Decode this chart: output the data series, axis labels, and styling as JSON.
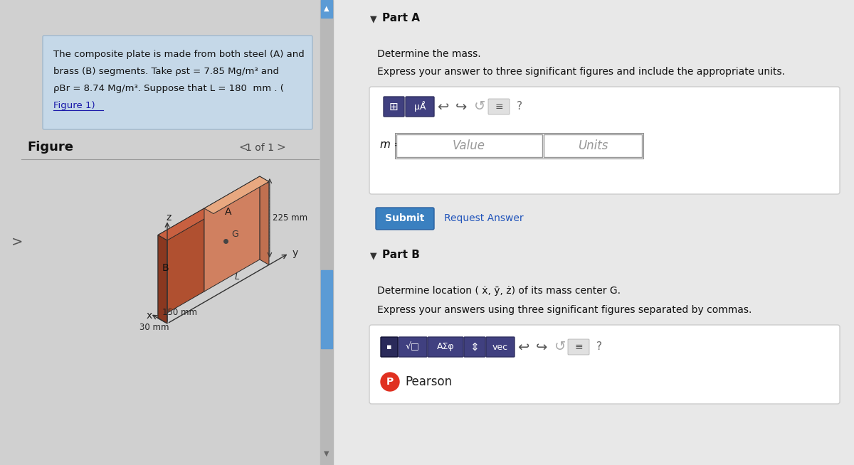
{
  "bg_color": "#e0e0e0",
  "left_panel_bg": "#d0d0d0",
  "scrollbar_color": "#5b9bd5",
  "problem_text_bg": "#c5d8e8",
  "figure_label": "Figure",
  "nav_text": "1 of 1",
  "part_a_label": "Part A",
  "part_a_q1": "Determine the mass.",
  "part_a_q2": "Express your answer to three significant figures and include the appropriate units.",
  "m_label": "m =",
  "value_placeholder": "Value",
  "units_placeholder": "Units",
  "submit_text": "Submit",
  "request_text": "Request Answer",
  "part_b_label": "Part B",
  "part_b_q1": "Determine location ( x̅, y̅, z̅) of its mass center G.",
  "part_b_q2": "Express your answers using three significant figures separated by commas.",
  "pearson_text": "Pearson",
  "dim_225": "225 mm",
  "dim_150": "150 mm",
  "dim_30": "30 mm",
  "label_A": "A",
  "label_B": "B",
  "label_G": "G",
  "label_L": "L",
  "label_x": "x",
  "label_y": "y",
  "label_z": "z",
  "prob_line1": "The composite plate is made from both steel (A) and",
  "prob_line2": "brass (B) segments. Take ρst = 7.85 Mg/m³ and",
  "prob_line3": "ρBr = 8.74 Mg/m³. Suppose that L = 180  mm . (",
  "prob_line4": "Figure 1)",
  "box_face_B_side": "#b05030",
  "box_face_B_front": "#8a3820",
  "box_face_B_top": "#c86040",
  "box_face_A_side": "#d08060",
  "box_face_A_top": "#e8a880",
  "box_face_A_end": "#c07050"
}
